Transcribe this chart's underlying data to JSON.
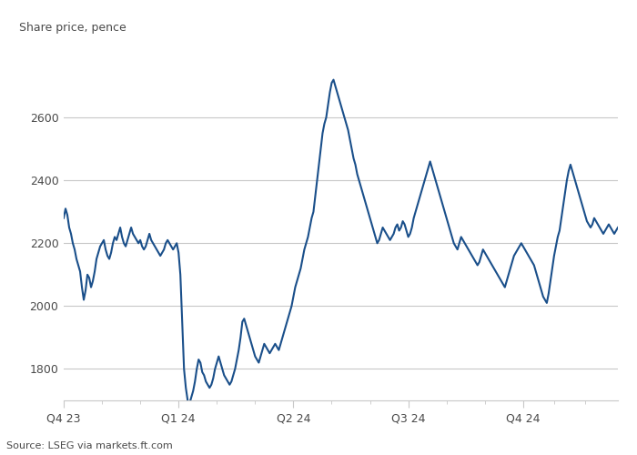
{
  "ylabel": "Share price, pence",
  "source": "Source: LSEG via markets.ft.com",
  "line_color": "#1a4f8a",
  "background_color": "#ffffff",
  "text_color": "#4a4a4a",
  "grid_color": "#c8c8c8",
  "axis_color": "#c8c8c8",
  "ylim": [
    1700,
    2800
  ],
  "yticks": [
    1800,
    2000,
    2200,
    2400,
    2600
  ],
  "x_quarter_labels": [
    "Q4 23",
    "Q1 24",
    "Q2 24",
    "Q3 24",
    "Q4 24"
  ],
  "prices": [
    2280,
    2310,
    2290,
    2250,
    2230,
    2200,
    2180,
    2150,
    2130,
    2110,
    2060,
    2020,
    2050,
    2100,
    2090,
    2060,
    2080,
    2110,
    2150,
    2170,
    2190,
    2200,
    2210,
    2180,
    2160,
    2150,
    2170,
    2200,
    2220,
    2210,
    2230,
    2250,
    2220,
    2200,
    2190,
    2210,
    2230,
    2250,
    2230,
    2220,
    2210,
    2200,
    2210,
    2190,
    2180,
    2190,
    2210,
    2230,
    2210,
    2200,
    2190,
    2180,
    2170,
    2160,
    2170,
    2180,
    2200,
    2210,
    2200,
    2190,
    2180,
    2190,
    2200,
    2170,
    2100,
    1950,
    1800,
    1740,
    1700,
    1690,
    1710,
    1730,
    1760,
    1800,
    1830,
    1820,
    1790,
    1780,
    1760,
    1750,
    1740,
    1750,
    1770,
    1800,
    1820,
    1840,
    1820,
    1800,
    1780,
    1770,
    1760,
    1750,
    1760,
    1780,
    1800,
    1830,
    1860,
    1900,
    1950,
    1960,
    1940,
    1920,
    1900,
    1880,
    1860,
    1840,
    1830,
    1820,
    1840,
    1860,
    1880,
    1870,
    1860,
    1850,
    1860,
    1870,
    1880,
    1870,
    1860,
    1880,
    1900,
    1920,
    1940,
    1960,
    1980,
    2000,
    2030,
    2060,
    2080,
    2100,
    2120,
    2150,
    2180,
    2200,
    2220,
    2250,
    2280,
    2300,
    2350,
    2400,
    2450,
    2500,
    2550,
    2580,
    2600,
    2640,
    2680,
    2710,
    2720,
    2700,
    2680,
    2660,
    2640,
    2620,
    2600,
    2580,
    2560,
    2530,
    2500,
    2470,
    2450,
    2420,
    2400,
    2380,
    2360,
    2340,
    2320,
    2300,
    2280,
    2260,
    2240,
    2220,
    2200,
    2210,
    2230,
    2250,
    2240,
    2230,
    2220,
    2210,
    2220,
    2230,
    2250,
    2260,
    2240,
    2250,
    2270,
    2260,
    2240,
    2220,
    2230,
    2250,
    2280,
    2300,
    2320,
    2340,
    2360,
    2380,
    2400,
    2420,
    2440,
    2460,
    2440,
    2420,
    2400,
    2380,
    2360,
    2340,
    2320,
    2300,
    2280,
    2260,
    2240,
    2220,
    2200,
    2190,
    2180,
    2200,
    2220,
    2210,
    2200,
    2190,
    2180,
    2170,
    2160,
    2150,
    2140,
    2130,
    2140,
    2160,
    2180,
    2170,
    2160,
    2150,
    2140,
    2130,
    2120,
    2110,
    2100,
    2090,
    2080,
    2070,
    2060,
    2080,
    2100,
    2120,
    2140,
    2160,
    2170,
    2180,
    2190,
    2200,
    2190,
    2180,
    2170,
    2160,
    2150,
    2140,
    2130,
    2110,
    2090,
    2070,
    2050,
    2030,
    2020,
    2010,
    2040,
    2080,
    2120,
    2160,
    2190,
    2220,
    2240,
    2280,
    2320,
    2360,
    2400,
    2430,
    2450,
    2430,
    2410,
    2390,
    2370,
    2350,
    2330,
    2310,
    2290,
    2270,
    2260,
    2250,
    2260,
    2280,
    2270,
    2260,
    2250,
    2240,
    2230,
    2240,
    2250,
    2260,
    2250,
    2240,
    2230,
    2240,
    2250
  ]
}
